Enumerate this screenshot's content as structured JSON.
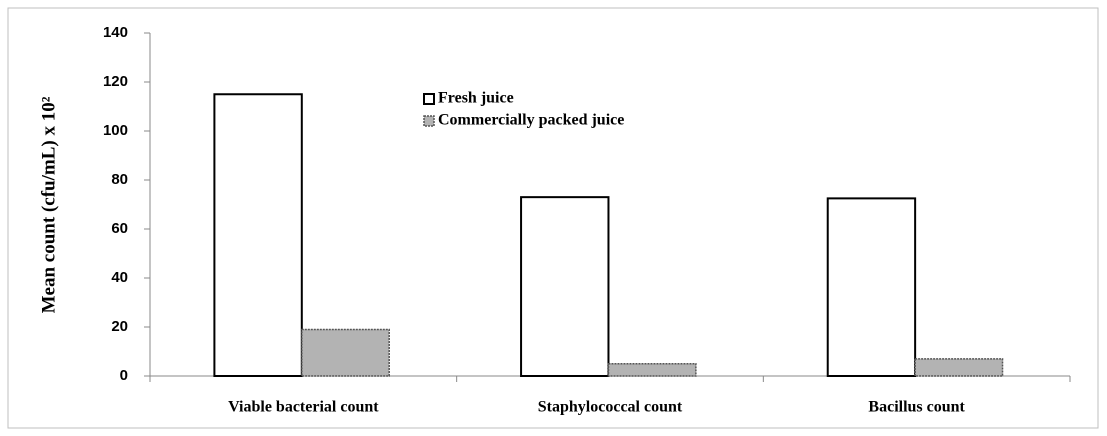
{
  "chart_data": {
    "type": "bar",
    "ylabel": "Mean count (cfu/mL) x 10²",
    "categories": [
      "Viable bacterial count",
      "Staphylococcal count",
      "Bacillus count"
    ],
    "series": [
      {
        "name": "Fresh juice",
        "color": "#ffffff",
        "values": [
          115,
          73,
          72.5
        ]
      },
      {
        "name": "Commercially packed juice",
        "color": "#b3b3b3",
        "values": [
          19,
          5,
          7
        ]
      }
    ],
    "ylim": [
      0,
      140
    ],
    "yticks": [
      0,
      20,
      40,
      60,
      80,
      100,
      120,
      140
    ],
    "legend": "top"
  }
}
